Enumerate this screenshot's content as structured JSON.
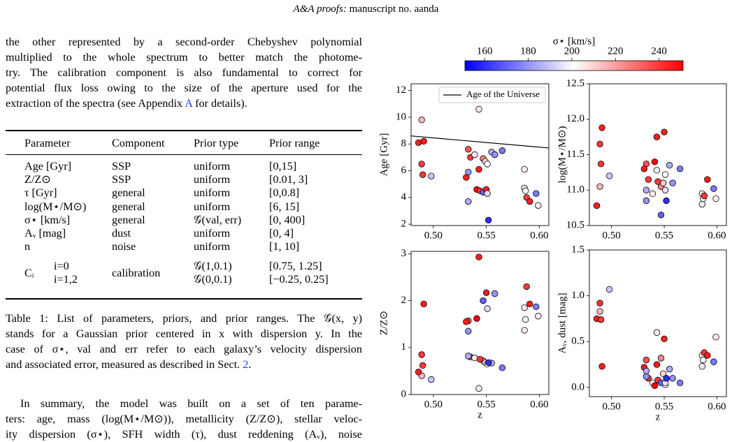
{
  "header": [
    "A&A proofs:",
    " manuscript no. aanda"
  ],
  "intro": {
    "lines": [
      [
        "the other represented by a second-order Chebyshev polynomial"
      ],
      [
        "multiplied to the whole spectrum to better match the photome-"
      ],
      [
        "try. The calibration component is also fundamental to correct for"
      ],
      [
        "potential flux loss owing to the size of the aperture used for the"
      ],
      [
        "extraction of the spectra (see Appendix ",
        "A",
        " for details)."
      ]
    ]
  },
  "table": {
    "columns": [
      "Parameter",
      "Component",
      "Prior type",
      "Prior range"
    ],
    "rows": [
      [
        "Age [Gyr]",
        "SSP",
        "uniform",
        "[0,15]"
      ],
      [
        "Z/Z⊙",
        "SSP",
        "uniform",
        "[0.01, 3]"
      ],
      [
        "τ [Gyr]",
        "general",
        "uniform",
        "[0,0.8]"
      ],
      [
        "log(M⋆/M⊙)",
        "general",
        "uniform",
        "[6, 15]"
      ],
      [
        "σ⋆ [km/s]",
        "general",
        "𝒢(val, err)",
        "[0, 400]"
      ],
      [
        "Aᵥ [mag]",
        "dust",
        "uniform",
        "[0, 4]"
      ],
      [
        "n",
        "noise",
        "uniform",
        "[1, 10]"
      ]
    ],
    "calibration": {
      "param": "Cᵢ",
      "cases": [
        "i=0",
        "i=1,2"
      ],
      "component": "calibration",
      "prior_types": [
        "𝒢(1,0.1)",
        "𝒢(0,0.1)"
      ],
      "ranges": [
        "[0.75, 1.25]",
        "[−0.25, 0.25]"
      ]
    }
  },
  "caption": {
    "lines": [
      [
        "Table 1: List of parameters, priors, and prior ranges. The 𝒢(x, y)"
      ],
      [
        "stands for a Gaussian prior centered in x with dispersion y. In the"
      ],
      [
        "case of σ⋆, val and err refer to each galaxy’s velocity dispersion"
      ],
      [
        "and associated error, measured as described in Sect. ",
        "2",
        "."
      ]
    ]
  },
  "summary": {
    "lines": [
      [
        "In summary, the model was built on a set of ten parame-"
      ],
      [
        "ters: age, mass (log(M⋆/M⊙)), metallicity (Z/Z⊙), stellar veloc-"
      ],
      [
        "ity dispersion (σ⋆), SFH width (τ), dust reddening (Aᵥ), noise"
      ]
    ]
  },
  "colorbar": {
    "label": "σ⋆ [km/s]",
    "lim": [
      151,
      251
    ],
    "ticks": [
      160,
      180,
      200,
      220,
      240
    ],
    "colormap": "bwr"
  },
  "chart_data": [
    {
      "type": "scatter",
      "ylabel": "Age [Gyr]",
      "x": [
        0.489,
        0.486,
        0.491,
        0.489,
        0.49,
        0.498,
        0.543,
        0.533,
        0.535,
        0.539,
        0.547,
        0.549,
        0.551,
        0.555,
        0.558,
        0.565,
        0.543,
        0.531,
        0.533,
        0.541,
        0.544,
        0.547,
        0.55,
        0.551,
        0.533,
        0.552,
        0.586,
        0.586,
        0.587,
        0.588,
        0.597,
        0.591,
        0.599
      ],
      "values": [
        9.8,
        8.1,
        8.2,
        6.5,
        5.7,
        5.6,
        10.6,
        7.6,
        7.0,
        7.2,
        6.9,
        6.7,
        6.5,
        7.4,
        7.2,
        7.5,
        6.1,
        5.5,
        5.9,
        4.6,
        4.5,
        4.4,
        4.6,
        4.3,
        3.7,
        2.3,
        6.1,
        4.7,
        4.5,
        4.0,
        4.3,
        3.7,
        3.4
      ],
      "c": [
        215,
        245,
        245,
        240,
        240,
        190,
        205,
        235,
        240,
        205,
        225,
        210,
        200,
        185,
        180,
        175,
        245,
        245,
        180,
        250,
        240,
        170,
        245,
        195,
        185,
        160,
        205,
        205,
        200,
        240,
        175,
        245,
        205
      ],
      "xlim": [
        0.479,
        0.609
      ],
      "xticks": [
        {
          "value": 0.5,
          "label": "0.50"
        },
        {
          "value": 0.55,
          "label": "0.55"
        },
        {
          "value": 0.6,
          "label": "0.60"
        }
      ],
      "ylim": [
        1.9,
        12.5
      ],
      "yticks": [
        2,
        4,
        6,
        8,
        10,
        12
      ],
      "lines": [
        {
          "name": "Age of the Universe",
          "x": [
            0.479,
            0.609
          ],
          "values": [
            8.6,
            7.7
          ],
          "color": "#000000"
        }
      ],
      "legend": "upper right"
    },
    {
      "type": "scatter",
      "ylabel": "log(M⋆/M⊙)",
      "x": [
        0.489,
        0.486,
        0.491,
        0.489,
        0.49,
        0.498,
        0.543,
        0.533,
        0.535,
        0.539,
        0.547,
        0.549,
        0.551,
        0.555,
        0.558,
        0.565,
        0.543,
        0.531,
        0.533,
        0.541,
        0.544,
        0.547,
        0.55,
        0.551,
        0.533,
        0.552,
        0.586,
        0.586,
        0.587,
        0.588,
        0.597,
        0.591,
        0.599
      ],
      "values": [
        11.05,
        10.78,
        11.88,
        11.65,
        11.37,
        11.2,
        11.28,
        11.37,
        11.15,
        10.95,
        11.05,
        11.1,
        11.22,
        11.35,
        11.1,
        11.3,
        11.75,
        11.3,
        10.85,
        11.4,
        11.12,
        10.65,
        11.82,
        11.0,
        11.0,
        10.85,
        10.95,
        10.8,
        10.88,
        10.92,
        11.02,
        11.15,
        10.88
      ],
      "c": [
        215,
        245,
        245,
        240,
        240,
        190,
        205,
        235,
        240,
        205,
        225,
        210,
        200,
        185,
        180,
        175,
        245,
        245,
        180,
        250,
        240,
        170,
        245,
        195,
        185,
        160,
        205,
        205,
        200,
        240,
        175,
        245,
        205
      ],
      "xlim": [
        0.479,
        0.609
      ],
      "xticks": [
        {
          "value": 0.5,
          "label": "0.50"
        },
        {
          "value": 0.55,
          "label": "0.55"
        },
        {
          "value": 0.6,
          "label": "0.60"
        }
      ],
      "ylim": [
        10.5,
        12.5
      ],
      "yticks": [
        10.5,
        {
          "value": 11,
          "label": "11.0"
        },
        11.5,
        {
          "value": 12,
          "label": "12.0"
        },
        12.5
      ]
    },
    {
      "type": "scatter",
      "ylabel": "Z/Z⊙",
      "xlabel": "z",
      "x": [
        0.489,
        0.486,
        0.491,
        0.489,
        0.49,
        0.498,
        0.543,
        0.533,
        0.535,
        0.539,
        0.547,
        0.549,
        0.551,
        0.555,
        0.558,
        0.565,
        0.543,
        0.531,
        0.533,
        0.541,
        0.544,
        0.547,
        0.55,
        0.551,
        0.533,
        0.552,
        0.586,
        0.586,
        0.587,
        0.588,
        0.597,
        0.591,
        0.599
      ],
      "values": [
        0.4,
        0.48,
        1.93,
        0.85,
        0.62,
        0.32,
        0.13,
        1.57,
        0.8,
        0.78,
        0.72,
        0.68,
        0.65,
        0.67,
        2.15,
        0.57,
        2.93,
        1.55,
        1.35,
        1.62,
        0.75,
        2.0,
        2.17,
        1.83,
        0.82,
        0.68,
        1.85,
        1.37,
        1.6,
        2.3,
        1.87,
        1.93,
        1.67
      ],
      "c": [
        215,
        245,
        245,
        240,
        240,
        190,
        205,
        235,
        240,
        205,
        225,
        210,
        200,
        185,
        180,
        175,
        245,
        245,
        180,
        250,
        240,
        170,
        245,
        195,
        185,
        160,
        205,
        205,
        200,
        240,
        175,
        245,
        205
      ],
      "xlim": [
        0.479,
        0.609
      ],
      "xticks": [
        {
          "value": 0.5,
          "label": "0.50"
        },
        {
          "value": 0.55,
          "label": "0.55"
        },
        {
          "value": 0.6,
          "label": "0.60"
        }
      ],
      "ylim": [
        0,
        3.05
      ],
      "yticks": [
        0,
        1,
        2,
        3
      ]
    },
    {
      "type": "scatter",
      "ylabel": "Aᵥ, dust [mag]",
      "xlabel": "z",
      "x": [
        0.489,
        0.486,
        0.491,
        0.489,
        0.49,
        0.498,
        0.543,
        0.533,
        0.535,
        0.539,
        0.547,
        0.549,
        0.551,
        0.555,
        0.558,
        0.565,
        0.543,
        0.531,
        0.533,
        0.541,
        0.544,
        0.547,
        0.55,
        0.551,
        0.533,
        0.552,
        0.586,
        0.586,
        0.587,
        0.588,
        0.597,
        0.591,
        0.599
      ],
      "values": [
        0.83,
        0.75,
        0.23,
        0.92,
        0.74,
        1.07,
        0.6,
        0.3,
        0.1,
        0.05,
        0.32,
        0.15,
        0.03,
        0.2,
        0.1,
        0.05,
        0.25,
        0.22,
        0.12,
        0.02,
        0.08,
        0.05,
        0.53,
        0.05,
        0.18,
        0.1,
        0.35,
        0.23,
        0.3,
        0.38,
        0.28,
        0.35,
        0.55
      ],
      "c": [
        215,
        245,
        245,
        240,
        240,
        190,
        205,
        235,
        240,
        205,
        225,
        210,
        200,
        185,
        180,
        175,
        245,
        245,
        180,
        250,
        240,
        170,
        245,
        195,
        185,
        160,
        205,
        205,
        200,
        240,
        175,
        245,
        205
      ],
      "xlim": [
        0.479,
        0.609
      ],
      "xticks": [
        {
          "value": 0.5,
          "label": "0.50"
        },
        {
          "value": 0.55,
          "label": "0.55"
        },
        {
          "value": 0.6,
          "label": "0.60"
        }
      ],
      "ylim": [
        -0.1,
        1.5
      ],
      "yticks": [
        {
          "value": 0,
          "label": "0.0"
        },
        0.5,
        {
          "value": 1,
          "label": "1.0"
        },
        1.5
      ]
    }
  ]
}
